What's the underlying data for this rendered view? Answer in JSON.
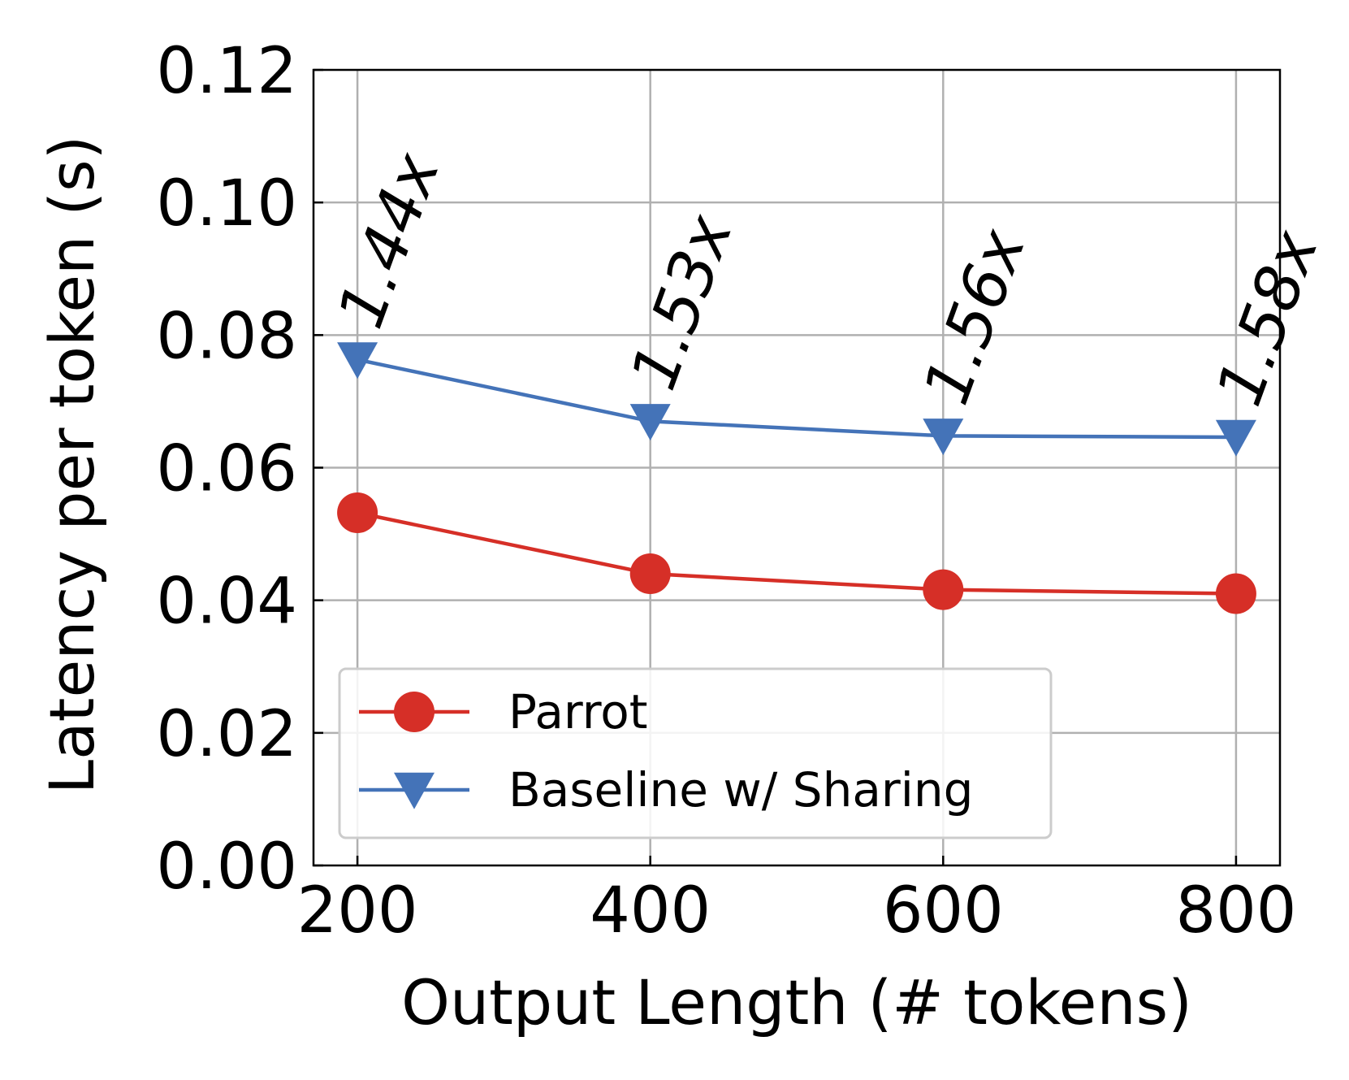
{
  "chart_data": {
    "type": "line",
    "xlabel": "Output Length (# tokens)",
    "ylabel": "Latency per token (s)",
    "x": [
      200,
      400,
      600,
      800
    ],
    "x_ticks": [
      "200",
      "400",
      "600",
      "800"
    ],
    "y_ticks": [
      "0.00",
      "0.02",
      "0.04",
      "0.06",
      "0.08",
      "0.10",
      "0.12"
    ],
    "xlim": [
      170,
      830
    ],
    "ylim": [
      0.0,
      0.12
    ],
    "grid": true,
    "legend_position": "lower-left",
    "series": [
      {
        "name": "Parrot",
        "values": [
          0.0532,
          0.044,
          0.0416,
          0.041
        ],
        "color": "#d62f27",
        "marker": "circle"
      },
      {
        "name": "Baseline w/ Sharing",
        "values": [
          0.0763,
          0.067,
          0.0648,
          0.0646
        ],
        "color": "#4473b8",
        "marker": "triangle-down"
      }
    ],
    "annotations": [
      "1.44x",
      "1.53x",
      "1.56x",
      "1.58x"
    ]
  }
}
